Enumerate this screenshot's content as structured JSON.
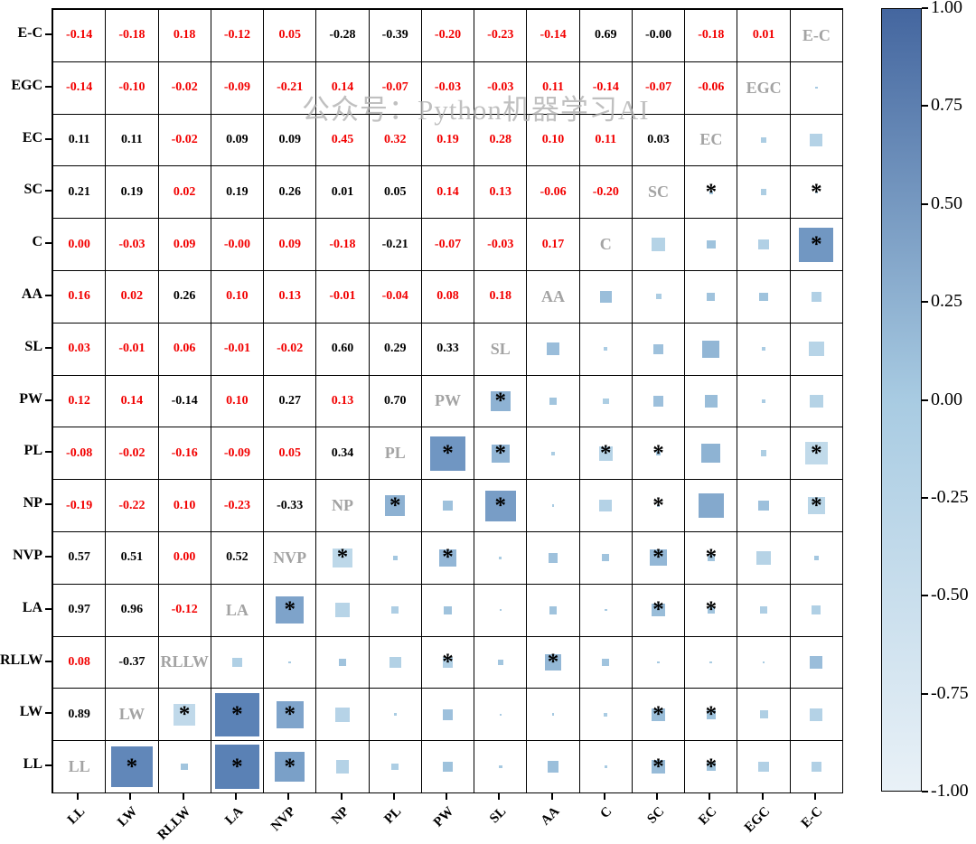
{
  "watermark": "公众号：Python机器学习AI",
  "colorbar": {
    "ticks": [
      "1.00",
      "0.75",
      "0.50",
      "0.25",
      "0.00",
      "-0.25",
      "-0.50",
      "-0.75",
      "-1.00"
    ],
    "top_color": "#44669f",
    "mid_color": "#a8cbe2",
    "bottom_color": "#e9f1f7"
  },
  "value_colors": {
    "red": "#f20000",
    "black": "#000000"
  },
  "chart_data": {
    "type": "heatmap",
    "subtype": "correlation-matrix",
    "columns": [
      "LL",
      "LW",
      "RLLW",
      "LA",
      "NVP",
      "NP",
      "PL",
      "PW",
      "SL",
      "AA",
      "C",
      "SC",
      "EC",
      "EGC",
      "E-C"
    ],
    "colorbar_range": [
      -1,
      1
    ],
    "legend_position": "right",
    "note": "lower triangle = correlation coefficients (red/black text), diagonal = variable labels, upper triangle = blue squares sized/colored by correlation; * marks significance",
    "rows": [
      {
        "label": "E-C",
        "numbers": [
          [
            "-0.14",
            "r"
          ],
          [
            "-0.18",
            "r"
          ],
          [
            "0.18",
            "r"
          ],
          [
            "-0.12",
            "r"
          ],
          [
            "0.05",
            "r"
          ],
          [
            "-0.28",
            "k"
          ],
          [
            "-0.39",
            "k"
          ],
          [
            "-0.20",
            "r"
          ],
          [
            "-0.23",
            "r"
          ],
          [
            "-0.14",
            "r"
          ],
          [
            "0.69",
            "k"
          ],
          [
            "-0.00",
            "k"
          ],
          [
            "-0.18",
            "r"
          ],
          [
            "0.01",
            "r"
          ]
        ],
        "squares": []
      },
      {
        "label": "EGC",
        "numbers": [
          [
            "-0.14",
            "r"
          ],
          [
            "-0.10",
            "r"
          ],
          [
            "-0.02",
            "r"
          ],
          [
            "-0.09",
            "r"
          ],
          [
            "-0.21",
            "r"
          ],
          [
            "0.14",
            "r"
          ],
          [
            "-0.07",
            "r"
          ],
          [
            "-0.03",
            "r"
          ],
          [
            "-0.03",
            "r"
          ],
          [
            "0.11",
            "r"
          ],
          [
            "-0.14",
            "r"
          ],
          [
            "-0.07",
            "r"
          ],
          [
            "-0.06",
            "r"
          ]
        ],
        "squares": [
          [
            0.01,
            0
          ]
        ]
      },
      {
        "label": "EC",
        "numbers": [
          [
            "0.11",
            "k"
          ],
          [
            "0.11",
            "k"
          ],
          [
            "-0.02",
            "r"
          ],
          [
            "0.09",
            "k"
          ],
          [
            "0.09",
            "k"
          ],
          [
            "0.45",
            "r"
          ],
          [
            "0.32",
            "r"
          ],
          [
            "0.19",
            "r"
          ],
          [
            "0.28",
            "r"
          ],
          [
            "0.10",
            "r"
          ],
          [
            "0.11",
            "r"
          ],
          [
            "0.03",
            "k"
          ]
        ],
        "squares": [
          [
            -0.06,
            0
          ],
          [
            -0.18,
            0
          ]
        ]
      },
      {
        "label": "SC",
        "numbers": [
          [
            "0.21",
            "k"
          ],
          [
            "0.19",
            "k"
          ],
          [
            "0.02",
            "r"
          ],
          [
            "0.19",
            "k"
          ],
          [
            "0.26",
            "k"
          ],
          [
            "0.01",
            "k"
          ],
          [
            "0.05",
            "k"
          ],
          [
            "0.14",
            "r"
          ],
          [
            "0.13",
            "r"
          ],
          [
            "-0.06",
            "r"
          ],
          [
            "-0.20",
            "r"
          ]
        ],
        "squares": [
          [
            0.03,
            1
          ],
          [
            -0.07,
            0
          ],
          [
            -0.005,
            1
          ]
        ]
      },
      {
        "label": "C",
        "numbers": [
          [
            "0.00",
            "r"
          ],
          [
            "-0.03",
            "r"
          ],
          [
            "0.09",
            "r"
          ],
          [
            "-0.00",
            "r"
          ],
          [
            "0.09",
            "r"
          ],
          [
            "-0.18",
            "r"
          ],
          [
            "-0.21",
            "k"
          ],
          [
            "-0.07",
            "r"
          ],
          [
            "-0.03",
            "r"
          ],
          [
            "0.17",
            "r"
          ]
        ],
        "squares": [
          [
            -0.2,
            0
          ],
          [
            0.11,
            0
          ],
          [
            -0.14,
            0
          ],
          [
            0.69,
            1
          ]
        ]
      },
      {
        "label": "AA",
        "numbers": [
          [
            "0.16",
            "r"
          ],
          [
            "0.02",
            "r"
          ],
          [
            "0.26",
            "k"
          ],
          [
            "0.10",
            "r"
          ],
          [
            "0.13",
            "r"
          ],
          [
            "-0.01",
            "r"
          ],
          [
            "-0.04",
            "r"
          ],
          [
            "0.08",
            "r"
          ],
          [
            "0.18",
            "r"
          ]
        ],
        "squares": [
          [
            0.17,
            0
          ],
          [
            -0.06,
            0
          ],
          [
            0.1,
            0
          ],
          [
            0.11,
            0
          ],
          [
            -0.14,
            0
          ]
        ]
      },
      {
        "label": "SL",
        "numbers": [
          [
            "0.03",
            "r"
          ],
          [
            "-0.01",
            "r"
          ],
          [
            "0.06",
            "r"
          ],
          [
            "-0.01",
            "r"
          ],
          [
            "-0.02",
            "r"
          ],
          [
            "0.60",
            "k"
          ],
          [
            "0.29",
            "k"
          ],
          [
            "0.33",
            "k"
          ]
        ],
        "squares": [
          [
            0.18,
            0
          ],
          [
            -0.03,
            0
          ],
          [
            0.13,
            0
          ],
          [
            0.28,
            0
          ],
          [
            -0.03,
            0
          ],
          [
            -0.23,
            0
          ]
        ]
      },
      {
        "label": "PW",
        "numbers": [
          [
            "0.12",
            "r"
          ],
          [
            "0.14",
            "r"
          ],
          [
            "-0.14",
            "k"
          ],
          [
            "0.10",
            "r"
          ],
          [
            "0.27",
            "k"
          ],
          [
            "0.13",
            "r"
          ],
          [
            "0.70",
            "k"
          ]
        ],
        "squares": [
          [
            0.33,
            1
          ],
          [
            0.08,
            0
          ],
          [
            -0.07,
            0
          ],
          [
            0.14,
            0
          ],
          [
            0.19,
            0
          ],
          [
            -0.03,
            0
          ],
          [
            -0.2,
            0
          ]
        ]
      },
      {
        "label": "PL",
        "numbers": [
          [
            "-0.08",
            "r"
          ],
          [
            "-0.02",
            "r"
          ],
          [
            "-0.16",
            "r"
          ],
          [
            "-0.09",
            "r"
          ],
          [
            "0.05",
            "r"
          ],
          [
            "0.34",
            "k"
          ]
        ],
        "squares": [
          [
            0.7,
            1
          ],
          [
            0.29,
            1
          ],
          [
            -0.04,
            0
          ],
          [
            -0.21,
            1
          ],
          [
            0.05,
            1
          ],
          [
            0.32,
            0
          ],
          [
            -0.07,
            0
          ],
          [
            -0.39,
            1
          ]
        ]
      },
      {
        "label": "NP",
        "numbers": [
          [
            "-0.19",
            "r"
          ],
          [
            "-0.22",
            "r"
          ],
          [
            "0.10",
            "r"
          ],
          [
            "-0.23",
            "r"
          ],
          [
            "-0.33",
            "k"
          ]
        ],
        "squares": [
          [
            0.34,
            1
          ],
          [
            0.13,
            0
          ],
          [
            0.6,
            1
          ],
          [
            -0.01,
            0
          ],
          [
            -0.18,
            0
          ],
          [
            0.01,
            1
          ],
          [
            0.45,
            0
          ],
          [
            0.14,
            0
          ],
          [
            -0.28,
            1
          ]
        ]
      },
      {
        "label": "NVP",
        "numbers": [
          [
            "0.57",
            "k"
          ],
          [
            "0.51",
            "k"
          ],
          [
            "0.00",
            "r"
          ],
          [
            "0.52",
            "k"
          ]
        ],
        "squares": [
          [
            -0.33,
            1
          ],
          [
            0.05,
            0
          ],
          [
            0.27,
            1
          ],
          [
            -0.02,
            0
          ],
          [
            0.13,
            0
          ],
          [
            0.09,
            0
          ],
          [
            0.26,
            1
          ],
          [
            0.09,
            1
          ],
          [
            -0.21,
            0
          ],
          [
            0.05,
            0
          ]
        ]
      },
      {
        "label": "LA",
        "numbers": [
          [
            "0.97",
            "k"
          ],
          [
            "0.96",
            "k"
          ],
          [
            "-0.12",
            "r"
          ]
        ],
        "squares": [
          [
            0.52,
            1
          ],
          [
            -0.23,
            0
          ],
          [
            -0.09,
            0
          ],
          [
            0.1,
            0
          ],
          [
            -0.01,
            0
          ],
          [
            0.1,
            0
          ],
          [
            -0.005,
            0
          ],
          [
            0.19,
            1
          ],
          [
            0.09,
            1
          ],
          [
            -0.09,
            0
          ],
          [
            -0.12,
            0
          ]
        ]
      },
      {
        "label": "RLLW",
        "numbers": [
          [
            "0.08",
            "r"
          ],
          [
            "-0.37",
            "k"
          ]
        ],
        "squares": [
          [
            -0.12,
            0
          ],
          [
            0.005,
            0
          ],
          [
            0.1,
            0
          ],
          [
            -0.16,
            0
          ],
          [
            -0.14,
            1
          ],
          [
            0.06,
            0
          ],
          [
            0.26,
            1
          ],
          [
            0.09,
            0
          ],
          [
            0.02,
            0
          ],
          [
            -0.02,
            0
          ],
          [
            -0.02,
            0
          ],
          [
            0.18,
            0
          ]
        ]
      },
      {
        "label": "LW",
        "numbers": [
          [
            "0.89",
            "k"
          ]
        ],
        "squares": [
          [
            -0.37,
            1
          ],
          [
            0.96,
            1
          ],
          [
            0.51,
            1
          ],
          [
            -0.22,
            0
          ],
          [
            -0.02,
            0
          ],
          [
            0.14,
            0
          ],
          [
            -0.01,
            0
          ],
          [
            0.02,
            0
          ],
          [
            -0.03,
            0
          ],
          [
            0.19,
            1
          ],
          [
            0.11,
            1
          ],
          [
            -0.1,
            0
          ],
          [
            -0.18,
            0
          ]
        ]
      },
      {
        "label": "LL",
        "numbers": [],
        "squares": [
          [
            0.89,
            1
          ],
          [
            0.08,
            0
          ],
          [
            0.97,
            1
          ],
          [
            0.57,
            1
          ],
          [
            -0.19,
            0
          ],
          [
            -0.08,
            0
          ],
          [
            0.12,
            0
          ],
          [
            0.03,
            0
          ],
          [
            0.16,
            0
          ],
          [
            0.005,
            0
          ],
          [
            0.21,
            1
          ],
          [
            0.11,
            1
          ],
          [
            -0.14,
            0
          ],
          [
            -0.14,
            0
          ]
        ]
      }
    ]
  }
}
